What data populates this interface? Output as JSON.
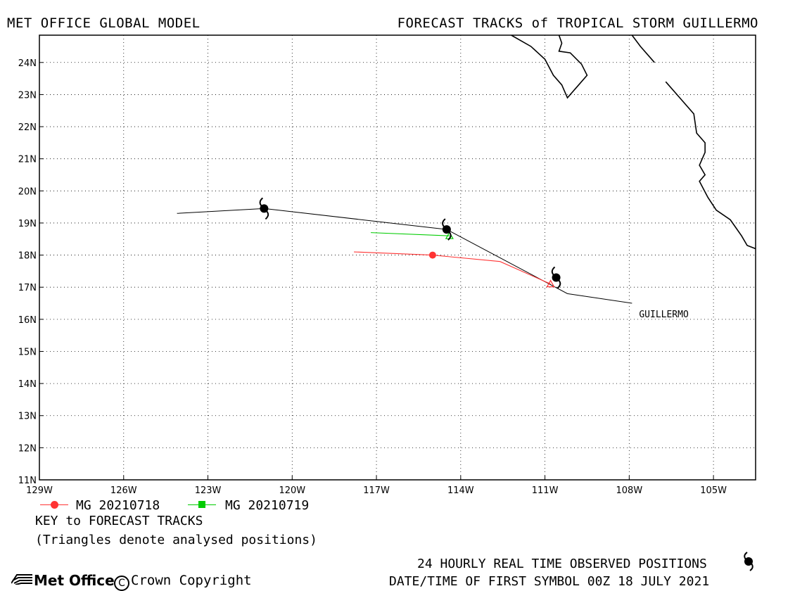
{
  "header": {
    "left_title": "MET OFFICE GLOBAL MODEL",
    "right_title": "FORECAST TRACKS of TROPICAL STORM GUILLERMO"
  },
  "map": {
    "lon_range": [
      -129.0,
      -103.5
    ],
    "lat_range": [
      11.0,
      24.85
    ],
    "x_ticks": [
      "129W",
      "126W",
      "123W",
      "120W",
      "117W",
      "114W",
      "111W",
      "108W",
      "105W"
    ],
    "x_tick_values": [
      -129,
      -126,
      -123,
      -120,
      -117,
      -114,
      -111,
      -108,
      -105
    ],
    "y_ticks": [
      "11N",
      "12N",
      "13N",
      "14N",
      "15N",
      "16N",
      "17N",
      "18N",
      "19N",
      "20N",
      "21N",
      "22N",
      "23N",
      "24N"
    ],
    "y_tick_values": [
      11,
      12,
      13,
      14,
      15,
      16,
      17,
      18,
      19,
      20,
      21,
      22,
      23,
      24
    ],
    "grid": "dotted",
    "storm_label": "GUILLERMO",
    "observed_track": [
      [
        -124.1,
        19.3
      ],
      [
        -121.0,
        19.45
      ],
      [
        -114.5,
        18.8
      ],
      [
        -110.2,
        16.8
      ],
      [
        -107.9,
        16.5
      ]
    ],
    "observed_symbols": [
      [
        -121.0,
        19.45
      ],
      [
        -114.5,
        18.8
      ],
      [
        -110.6,
        17.3
      ]
    ],
    "forecast_tracks": [
      {
        "name": "MG 20210718",
        "color": "#ff3333",
        "marker": "circle",
        "points": [
          [
            -117.8,
            18.1
          ],
          [
            -115.0,
            18.0
          ],
          [
            -112.6,
            17.8
          ],
          [
            -110.8,
            17.1
          ]
        ],
        "marker_at": [
          -115.0,
          18.0
        ],
        "triangle_at": [
          -110.8,
          17.1
        ]
      },
      {
        "name": "MG 20210719",
        "color": "#00cc00",
        "marker": "square",
        "points": [
          [
            -117.2,
            18.7
          ],
          [
            -114.4,
            18.6
          ]
        ],
        "triangle_at": [
          -114.4,
          18.6
        ]
      }
    ],
    "coastlines": [
      [
        [
          -112.2,
          24.85
        ],
        [
          -111.5,
          24.5
        ],
        [
          -111.0,
          24.1
        ],
        [
          -110.7,
          23.6
        ],
        [
          -110.4,
          23.3
        ],
        [
          -110.2,
          22.9
        ],
        [
          -109.9,
          23.2
        ],
        [
          -109.5,
          23.6
        ],
        [
          -109.7,
          23.95
        ],
        [
          -110.1,
          24.3
        ],
        [
          -110.5,
          24.35
        ],
        [
          -110.4,
          24.6
        ],
        [
          -110.5,
          24.85
        ]
      ],
      [
        [
          -107.9,
          24.85
        ],
        [
          -107.6,
          24.5
        ],
        [
          -107.1,
          24.0
        ]
      ],
      [
        [
          -106.7,
          23.4
        ],
        [
          -106.2,
          22.9
        ],
        [
          -105.7,
          22.4
        ],
        [
          -105.6,
          21.8
        ],
        [
          -105.3,
          21.5
        ],
        [
          -105.3,
          21.2
        ],
        [
          -105.5,
          20.8
        ],
        [
          -105.3,
          20.5
        ],
        [
          -105.5,
          20.3
        ],
        [
          -105.2,
          19.8
        ],
        [
          -104.9,
          19.4
        ],
        [
          -104.4,
          19.1
        ],
        [
          -104.0,
          18.6
        ],
        [
          -103.8,
          18.3
        ],
        [
          -103.5,
          18.2
        ]
      ]
    ]
  },
  "legend": {
    "items": [
      {
        "label": "MG 20210718",
        "color": "#ff3333",
        "marker": "circle"
      },
      {
        "label": "MG 20210719",
        "color": "#00cc00",
        "marker": "square"
      }
    ],
    "key_title": "KEY to FORECAST TRACKS",
    "triangle_note": "(Triangles denote analysed positions)"
  },
  "footer": {
    "observed_note": "24 HOURLY REAL TIME OBSERVED POSITIONS",
    "datetime_note": "DATE/TIME OF FIRST SYMBOL 00Z 18 JULY 2021",
    "logo_text": "Met Office",
    "copyright": "Crown Copyright"
  }
}
